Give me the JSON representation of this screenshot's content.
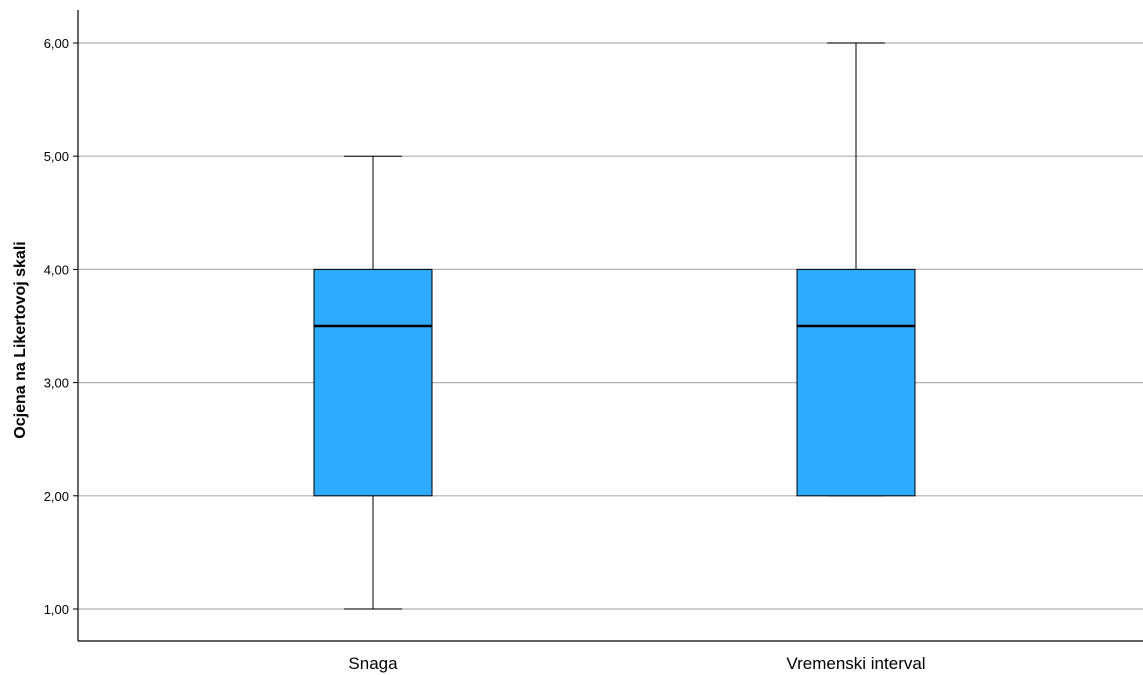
{
  "chart_data": {
    "type": "boxplot",
    "title": "",
    "xlabel": "",
    "ylabel": "Ocjena na Likertovoj skali",
    "ylim": [
      0.75,
      6.3
    ],
    "yticks": [
      1,
      2,
      3,
      4,
      5,
      6
    ],
    "ytick_labels": [
      "1,00",
      "2,00",
      "3,00",
      "4,00",
      "5,00",
      "6,00"
    ],
    "grid": true,
    "categories": [
      "Snaga",
      "Vremenski interval"
    ],
    "boxes": [
      {
        "category": "Snaga",
        "min": 1.0,
        "q1": 2.0,
        "median": 3.5,
        "q3": 4.0,
        "max": 5.0
      },
      {
        "category": "Vremenski interval",
        "min": 2.0,
        "q1": 2.0,
        "median": 3.5,
        "q3": 4.0,
        "max": 6.0
      }
    ],
    "colors": {
      "box_fill": "#2eaaff",
      "box_stroke": "#000000",
      "grid": "#b0b0b0",
      "axis": "#000000"
    }
  }
}
